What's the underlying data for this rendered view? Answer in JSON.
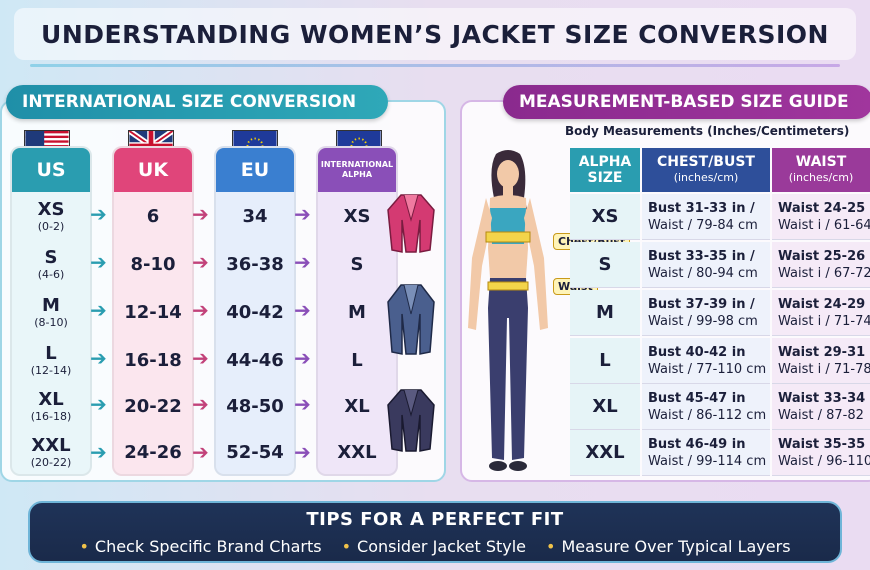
{
  "title": "UNDERSTANDING WOMEN’S JACKET SIZE CONVERSION",
  "left": {
    "banner": "INTERNATIONAL SIZE CONVERSION",
    "columns": [
      {
        "label": "US",
        "color": "#2a9db0"
      },
      {
        "label": "UK",
        "color": "#e0457a"
      },
      {
        "label": "EU",
        "color": "#3a7fd0"
      },
      {
        "label": "INTERNATIONAL ALPHA",
        "color": "#8a4fb8"
      }
    ],
    "rows": [
      {
        "us": "XS",
        "us_sub": "(0-2)",
        "uk": "6",
        "eu": "34",
        "alpha": "XS"
      },
      {
        "us": "S",
        "us_sub": "(4-6)",
        "uk": "8-10",
        "eu": "36-38",
        "alpha": "S"
      },
      {
        "us": "M",
        "us_sub": "(8-10)",
        "uk": "12-14",
        "eu": "40-42",
        "alpha": "M"
      },
      {
        "us": "L",
        "us_sub": "(12-14)",
        "uk": "16-18",
        "eu": "44-46",
        "alpha": "L"
      },
      {
        "us": "XL",
        "us_sub": "(16-18)",
        "uk": "20-22",
        "eu": "48-50",
        "alpha": "XL"
      },
      {
        "us": "XXL",
        "us_sub": "(20-22)",
        "uk": "24-26",
        "eu": "52-54",
        "alpha": "XXL"
      }
    ]
  },
  "right": {
    "banner": "MEASUREMENT-BASED SIZE GUIDE",
    "subtitle": "Body Measurements (Inches/Centimeters)",
    "tag_chest": "Chest/Bust",
    "tag_waist": "Waist",
    "headers": {
      "size": "ALPHA SIZE",
      "chest": "CHEST/BUST",
      "chest_sub": "(inches/cm)",
      "waist": "WAIST",
      "waist_sub": "(inches/cm)"
    },
    "rows": [
      {
        "size": "XS",
        "c1": "Bust 31-33 in /",
        "c2": "Waist / 79-84 cm",
        "w1": "Waist 24-25",
        "w2": "Waist i / 61-64"
      },
      {
        "size": "S",
        "c1": "Bust 33-35 in /",
        "c2": "Waist / 80-94 cm",
        "w1": "Waist 25-26",
        "w2": "Waist i / 67-72"
      },
      {
        "size": "M",
        "c1": "Bust 37-39 in /",
        "c2": "Waist / 99-98 cm",
        "w1": "Waist 24-29",
        "w2": "Waist i / 71-74"
      },
      {
        "size": "L",
        "c1": "Bust 40-42 in",
        "c2": "Waist / 77-110 cm",
        "w1": "Waist 29-31",
        "w2": "Waist i / 71-78"
      },
      {
        "size": "XL",
        "c1": "Bust 45-47 in",
        "c2": "Waist / 86-112 cm",
        "w1": "Waist 33-34",
        "w2": "Waist / 87-82"
      },
      {
        "size": "XXL",
        "c1": "Bust 46-49 in",
        "c2": "Waist / 99-114 cm",
        "w1": "Waist 35-35",
        "w2": "Waist / 96-110"
      }
    ]
  },
  "tips": {
    "title": "TIPS FOR A PERFECT FIT",
    "items": [
      "Check Specific Brand Charts",
      "Consider Jacket Style",
      "Measure Over Typical Layers"
    ]
  }
}
